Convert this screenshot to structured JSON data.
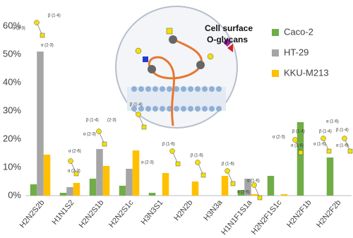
{
  "chart_data": {
    "type": "bar",
    "title": "Cell surface",
    "subtitle": "O-glycans",
    "categories": [
      "H2N2S2b",
      "H1N1S2",
      "H2N2S1b",
      "H2N2S1c",
      "H3N3S1",
      "H2N2b",
      "H3N3a",
      "H1N1F1S1a",
      "H2N2F1S1c",
      "H2N2F1b",
      "H2N2F2b"
    ],
    "series": [
      {
        "name": "Caco-2",
        "color": "#70ad47",
        "values": [
          4,
          1,
          6,
          3.5,
          1,
          0,
          0,
          2,
          7,
          26,
          13.5
        ]
      },
      {
        "name": "HT-29",
        "color": "#a5a5a5",
        "values": [
          51,
          3,
          16.5,
          9.5,
          0,
          0,
          0,
          6,
          0,
          0,
          0
        ]
      },
      {
        "name": "KKU-M213",
        "color": "#ffc000",
        "values": [
          14.5,
          4.5,
          10.5,
          16,
          8,
          5,
          7,
          0.5,
          0.5,
          0,
          0
        ]
      }
    ],
    "ylim": [
      0,
      60
    ],
    "yticks": [
      {
        "value": 0,
        "label": "0%"
      },
      {
        "value": 10,
        "label": "10%"
      },
      {
        "value": 20,
        "label": "20%"
      },
      {
        "value": 30,
        "label": "30%"
      },
      {
        "value": 40,
        "label": "40%"
      },
      {
        "value": 50,
        "label": "50%"
      },
      {
        "value": 60,
        "label": "60%"
      }
    ],
    "grid": false,
    "legend": "top-right",
    "annotations": [
      "β (1-4)",
      "α (2-3)",
      "α (2-3)",
      "α (2-6)",
      "α (2-3)",
      "β (1-4)",
      "α (2-3)",
      "β (1-4)",
      "(2-3)",
      "β (1-6)",
      "α (2-3)",
      "β (1-6)",
      "β (1-6)",
      "α (1-6)",
      "α (2-6)",
      "β (1-4)",
      "α (2-3)",
      "α (1-6)",
      "β (1-4)",
      "α (1-6)",
      "β (1-4)",
      "α (1-6)",
      "α (1-6)"
    ]
  }
}
